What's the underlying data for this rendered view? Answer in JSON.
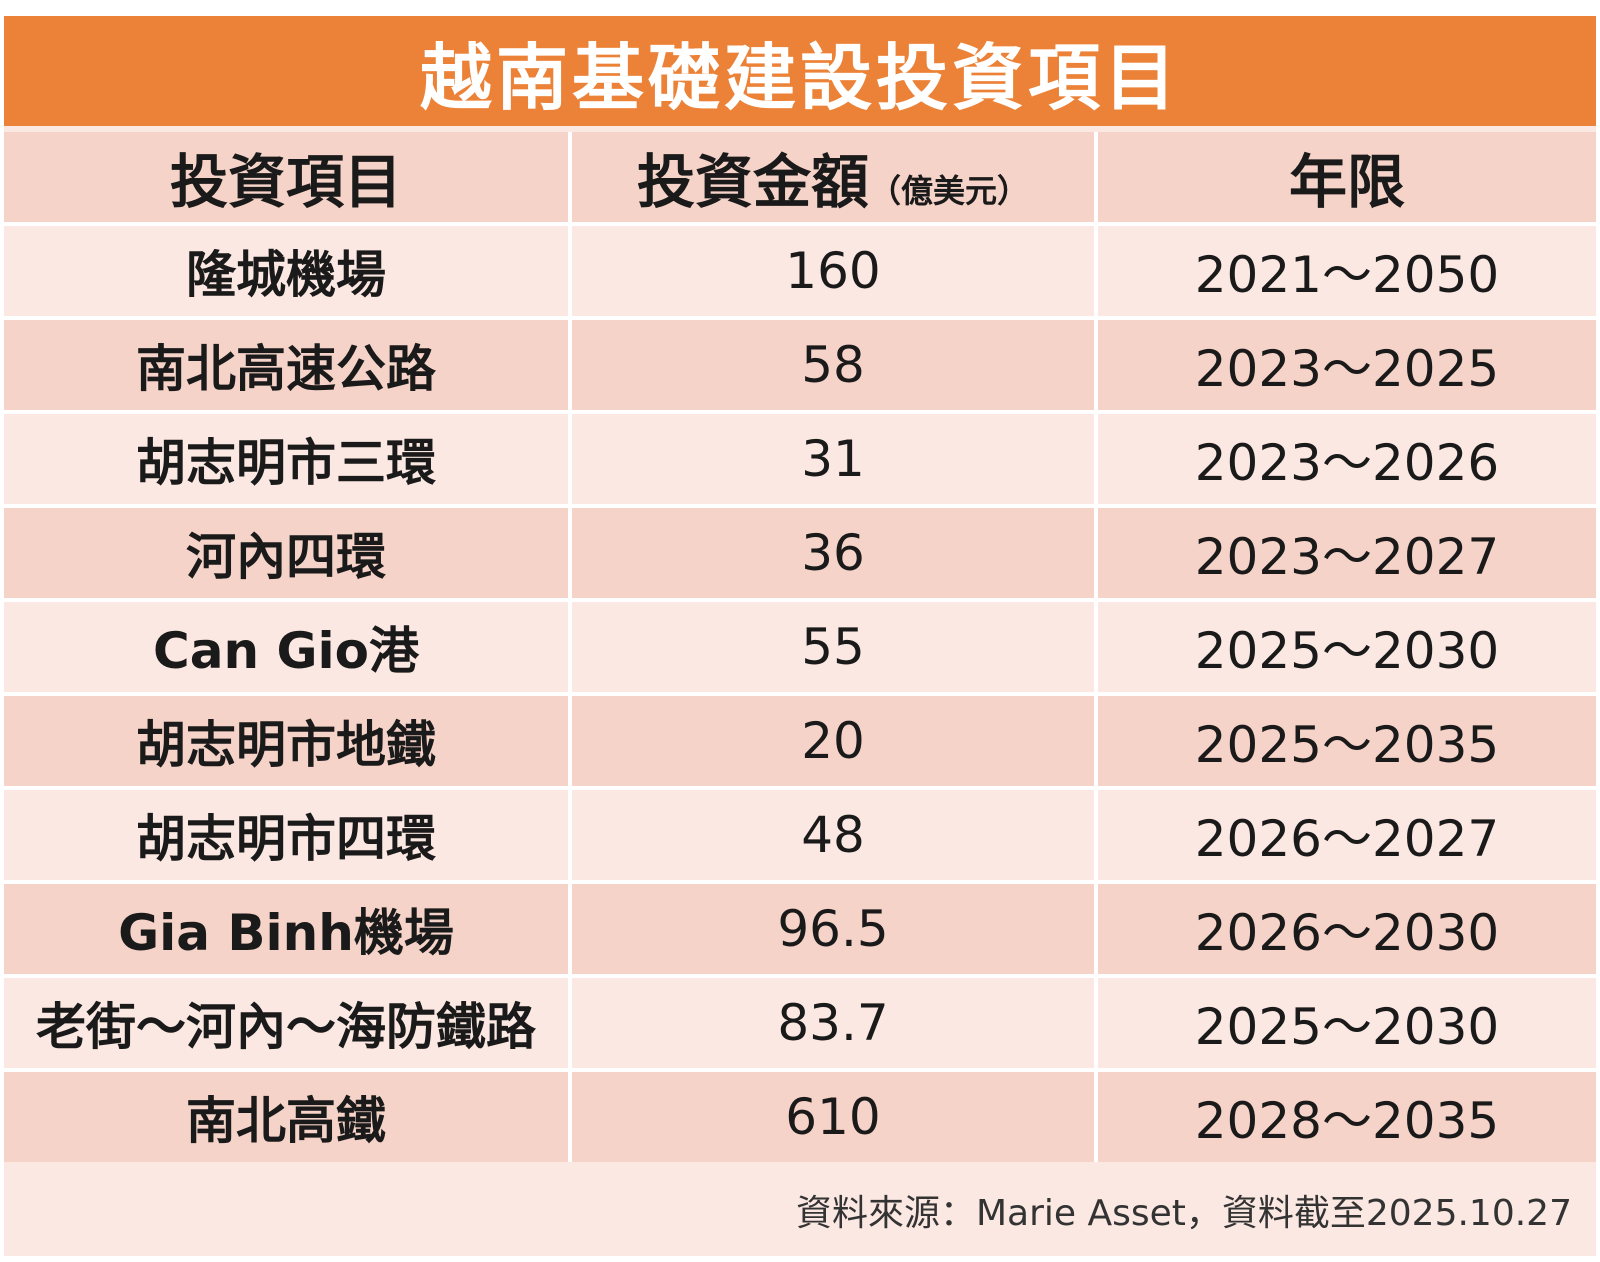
{
  "title": "越南基礎建設投資項目",
  "headers": {
    "item": "投資項目",
    "amount": "投資金額",
    "amount_unit": "（億美元）",
    "period": "年限"
  },
  "rows": [
    {
      "item": "隆城機場",
      "amount": "160",
      "period": "2021～2050"
    },
    {
      "item": "南北高速公路",
      "amount": "58",
      "period": "2023～2025"
    },
    {
      "item": "胡志明市三環",
      "amount": "31",
      "period": "2023～2026"
    },
    {
      "item": "河內四環",
      "amount": "36",
      "period": "2023～2027"
    },
    {
      "item": "Can Gio港",
      "amount": "55",
      "period": "2025～2030"
    },
    {
      "item": "胡志明市地鐵",
      "amount": "20",
      "period": "2025～2035"
    },
    {
      "item": "胡志明市四環",
      "amount": "48",
      "period": "2026～2027"
    },
    {
      "item": "Gia Binh機場",
      "amount": "96.5",
      "period": "2026～2030"
    },
    {
      "item": "老街～河內～海防鐵路",
      "amount": "83.7",
      "period": "2025～2030"
    },
    {
      "item": "南北高鐵",
      "amount": "610",
      "period": "2028～2035"
    }
  ],
  "source": "資料來源：Marie Asset，資料截至2025.10.27",
  "colors": {
    "title_bg": "#ec8237",
    "row_light": "#fbe8e2",
    "row_dark": "#f6d3c8"
  }
}
